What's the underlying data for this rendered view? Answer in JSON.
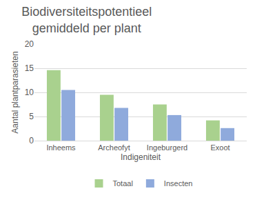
{
  "chart_data": {
    "type": "bar",
    "title": "Biodiversiteitspotentieel\ngemiddeld per plant",
    "x_label": "Indigeniteit",
    "y_label": "Aantal plantparasieten",
    "categories": [
      "Inheems",
      "Archeofyt",
      "Ingeburgerd",
      "Exoot"
    ],
    "series": [
      {
        "name": "Totaal",
        "color": "#a9d18e",
        "values": [
          14.6,
          9.5,
          7.5,
          4.2
        ]
      },
      {
        "name": "Insecten",
        "color": "#8faadc",
        "values": [
          10.5,
          6.8,
          5.3,
          2.6
        ]
      }
    ],
    "ylim": [
      0,
      20
    ],
    "yticks": [
      0,
      5,
      10,
      15,
      20
    ],
    "grid": true,
    "legend": "bottom"
  }
}
